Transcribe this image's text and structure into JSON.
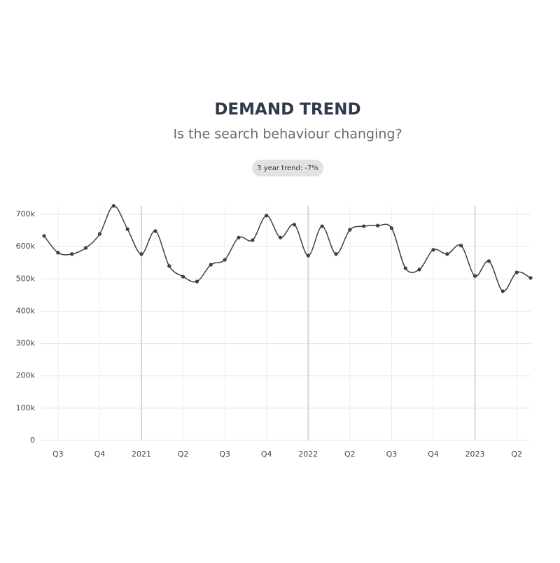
{
  "chart_data": {
    "type": "line",
    "title": "DEMAND TREND",
    "subtitle": "Is the search behaviour changing?",
    "badge": "3 year trend: -7%",
    "categories": [
      null,
      "Q3",
      null,
      null,
      "Q4",
      null,
      null,
      "2021",
      null,
      null,
      "Q2",
      null,
      null,
      "Q3",
      null,
      null,
      "Q4",
      null,
      null,
      "2022",
      null,
      null,
      "Q2",
      null,
      null,
      "Q3",
      null,
      null,
      "Q4",
      null,
      null,
      "2023",
      null,
      null,
      "Q2",
      null
    ],
    "values": [
      633000,
      581000,
      577000,
      596000,
      639000,
      726000,
      654000,
      577000,
      648000,
      540000,
      507000,
      492000,
      544000,
      559000,
      628000,
      620000,
      696000,
      628000,
      668000,
      572000,
      663000,
      577000,
      652000,
      663000,
      665000,
      657000,
      533000,
      529000,
      590000,
      577000,
      603000,
      509000,
      555000,
      462000,
      520000,
      503000
    ],
    "color": "#3a3f4a",
    "ylim": [
      0,
      700000
    ],
    "yticks": [
      0,
      {
        "value": 100000,
        "label": "100k"
      },
      {
        "value": 200000,
        "label": "200k"
      },
      {
        "value": 300000,
        "label": "300k"
      },
      {
        "value": 400000,
        "label": "400k"
      },
      {
        "value": 500000,
        "label": "500k"
      },
      {
        "value": 600000,
        "label": "600k"
      },
      {
        "value": 700000,
        "label": "700k"
      }
    ],
    "grid": true
  }
}
